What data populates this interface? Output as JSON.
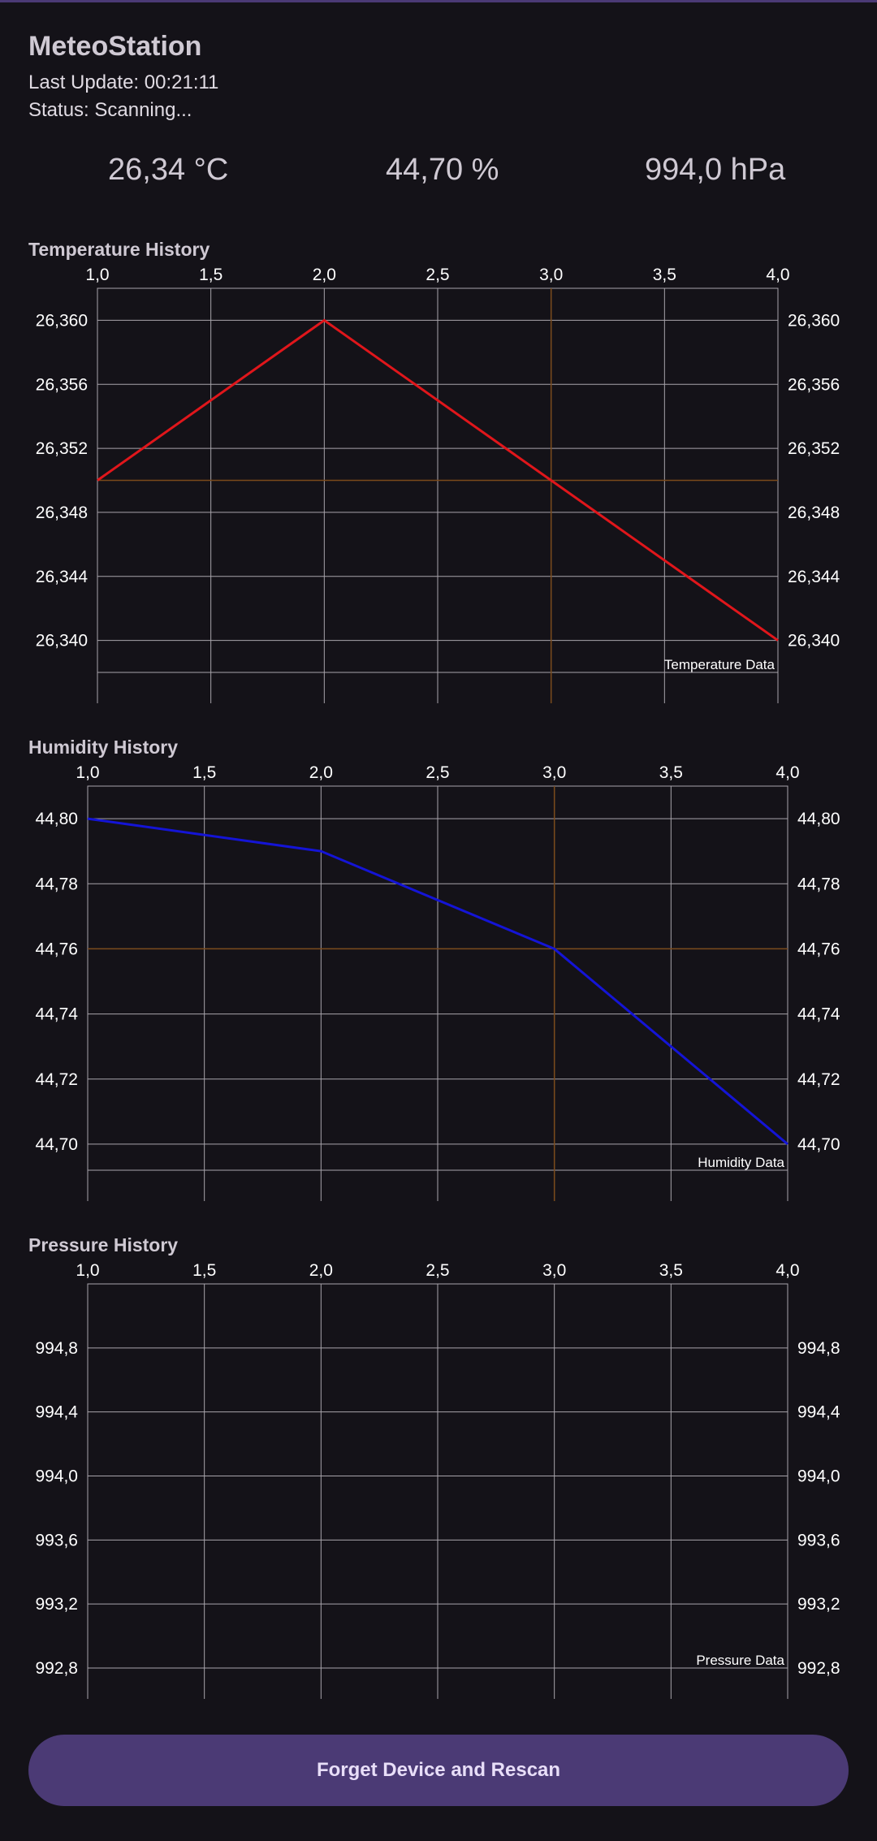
{
  "app": {
    "title": "MeteoStation"
  },
  "status": {
    "last_update": "Last Update: 00:21:11",
    "status": "Status: Scanning..."
  },
  "readouts": {
    "temperature": "26,34 °C",
    "humidity": "44,70 %",
    "pressure": "994,0 hPa"
  },
  "button": {
    "label": "Forget Device and Rescan"
  },
  "colors": {
    "accent": "#4b3a75",
    "temperature": "#e0161b",
    "humidity": "#1414d6",
    "pressure": "#3a3a3a",
    "grid": "#a8a4ab",
    "highlight": "#7a4a1a"
  },
  "chart_data": [
    {
      "type": "line",
      "title": "Temperature History",
      "x": [
        1.0,
        2.0,
        3.0,
        4.0
      ],
      "xlim": [
        1.0,
        4.0
      ],
      "xticks": [
        "1,0",
        "1,5",
        "2,0",
        "2,5",
        "3,0",
        "3,5",
        "4,0"
      ],
      "ylim": [
        26.338,
        26.362
      ],
      "yticks": [
        "26,340",
        "26,344",
        "26,348",
        "26,352",
        "26,356",
        "26,360"
      ],
      "series": [
        {
          "name": "Temperature",
          "values": [
            26.35,
            26.36,
            26.35,
            26.34
          ]
        }
      ],
      "description": "Temperature Data",
      "highlight": {
        "x": 3.0,
        "y": 26.35
      },
      "grid": true,
      "legend": "bottom-left"
    },
    {
      "type": "line",
      "title": "Humidity History",
      "x": [
        1.0,
        2.0,
        3.0,
        4.0
      ],
      "xlim": [
        1.0,
        4.0
      ],
      "xticks": [
        "1,0",
        "1,5",
        "2,0",
        "2,5",
        "3,0",
        "3,5",
        "4,0"
      ],
      "ylim": [
        44.692,
        44.81
      ],
      "yticks": [
        "44,70",
        "44,72",
        "44,74",
        "44,76",
        "44,78",
        "44,80"
      ],
      "series": [
        {
          "name": "Humidity",
          "values": [
            44.8,
            44.79,
            44.76,
            44.7
          ]
        }
      ],
      "description": "Humidity Data",
      "highlight": {
        "x": 3.0,
        "y": 44.76
      },
      "grid": true,
      "legend": "bottom-left"
    },
    {
      "type": "line",
      "title": "Pressure History",
      "x": [],
      "xlim": [
        1.0,
        4.0
      ],
      "xticks": [
        "1,0",
        "1,5",
        "2,0",
        "2,5",
        "3,0",
        "3,5",
        "4,0"
      ],
      "ylim": [
        992.8,
        995.2
      ],
      "yticks": [
        "992,8",
        "993,2",
        "993,6",
        "994,0",
        "994,4",
        "994,8"
      ],
      "series": [
        {
          "name": "Pressure",
          "values": []
        }
      ],
      "description": "Pressure Data",
      "grid": true,
      "legend": "bottom-left"
    }
  ]
}
